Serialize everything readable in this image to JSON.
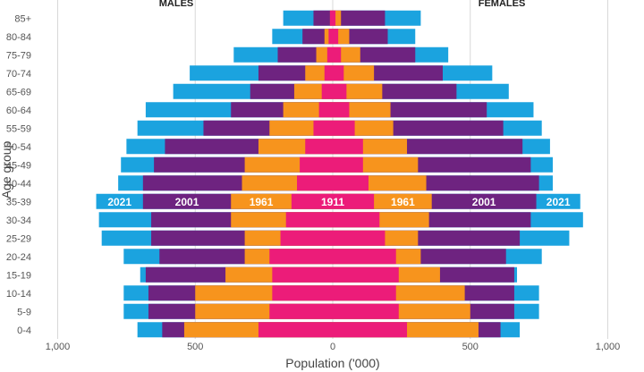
{
  "chart_data": {
    "type": "bar",
    "orientation": "horizontal-pyramid",
    "xlabel": "Population ('000)",
    "ylabel": "Age group",
    "x_ticks": [
      "1,000",
      "500",
      "0",
      "500",
      "1,000"
    ],
    "xlim": [
      -1000,
      1000
    ],
    "grid": "vertical",
    "sex_labels": {
      "left": "MALES",
      "right": "FEMALES"
    },
    "categories": [
      "0-4",
      "5-9",
      "10-14",
      "15-19",
      "20-24",
      "25-29",
      "30-34",
      "35-39",
      "40-44",
      "45-49",
      "50-54",
      "55-59",
      "60-64",
      "65-69",
      "70-74",
      "75-79",
      "80-84",
      "85+"
    ],
    "series": [
      {
        "name": "2021",
        "color": "#1ba3df",
        "males": [
          710,
          760,
          760,
          700,
          760,
          840,
          850,
          860,
          780,
          770,
          750,
          710,
          680,
          580,
          520,
          360,
          220,
          180
        ],
        "females": [
          680,
          750,
          750,
          670,
          760,
          860,
          910,
          900,
          800,
          800,
          790,
          760,
          730,
          640,
          580,
          420,
          300,
          320
        ]
      },
      {
        "name": "2001",
        "color": "#6e2380",
        "males": [
          620,
          670,
          670,
          680,
          630,
          660,
          660,
          690,
          690,
          650,
          610,
          470,
          370,
          300,
          270,
          200,
          110,
          70
        ],
        "females": [
          610,
          660,
          660,
          660,
          630,
          680,
          720,
          740,
          750,
          720,
          690,
          620,
          560,
          450,
          400,
          300,
          200,
          190
        ]
      },
      {
        "name": "1961",
        "color": "#f7941d",
        "males": [
          540,
          500,
          500,
          390,
          320,
          320,
          370,
          370,
          330,
          320,
          270,
          230,
          180,
          140,
          100,
          60,
          30,
          10
        ],
        "females": [
          530,
          500,
          480,
          390,
          320,
          310,
          350,
          360,
          340,
          310,
          270,
          220,
          210,
          180,
          150,
          100,
          60,
          30
        ]
      },
      {
        "name": "1911",
        "color": "#ec1c79",
        "males": [
          270,
          230,
          220,
          220,
          230,
          190,
          170,
          150,
          130,
          120,
          100,
          70,
          50,
          40,
          30,
          20,
          15,
          10
        ],
        "females": [
          270,
          240,
          230,
          240,
          230,
          190,
          170,
          150,
          130,
          110,
          110,
          80,
          60,
          50,
          40,
          30,
          20,
          10
        ]
      }
    ],
    "row_labels_at": "35-39",
    "row_labels": [
      {
        "text": "2021",
        "side": "left",
        "series": "2021"
      },
      {
        "text": "2001",
        "side": "left",
        "series": "2001"
      },
      {
        "text": "1961",
        "side": "left",
        "series": "1961"
      },
      {
        "text": "1911",
        "side": "center",
        "series": "1911"
      },
      {
        "text": "1961",
        "side": "right",
        "series": "1961"
      },
      {
        "text": "2001",
        "side": "right",
        "series": "2001"
      },
      {
        "text": "2021",
        "side": "right",
        "series": "2021"
      }
    ]
  }
}
